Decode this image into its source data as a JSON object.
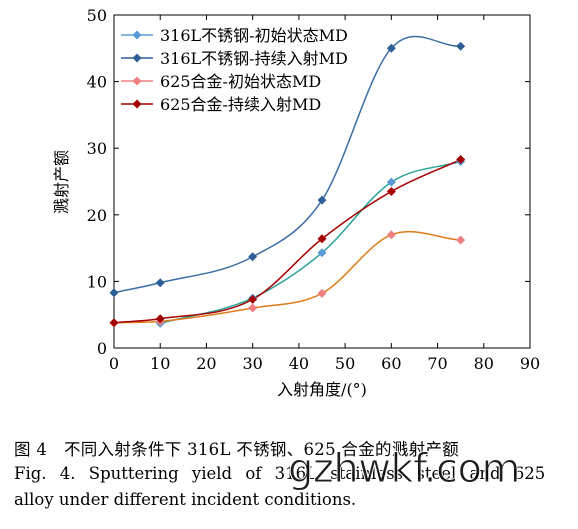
{
  "chart_data": {
    "type": "line",
    "xlabel": "入射角度/(°)",
    "ylabel": "溅射产额",
    "xlim": [
      0,
      90
    ],
    "ylim": [
      0,
      50
    ],
    "xticks": [
      0,
      10,
      20,
      30,
      40,
      50,
      60,
      70,
      80,
      90
    ],
    "yticks": [
      0,
      10,
      20,
      30,
      40,
      50
    ],
    "legend_position": "top-left",
    "grid": false,
    "series": [
      {
        "name": "316L不锈钢-初始状态MD",
        "marker_color": "#5b9bd5",
        "line_color": "#2aa39a",
        "x": [
          10,
          30,
          45,
          60,
          75
        ],
        "y": [
          3.7,
          7.5,
          14.3,
          24.9,
          28.0
        ]
      },
      {
        "name": "316L不锈钢-持续入射MD",
        "marker_color": "#2f5f98",
        "line_color": "#3b6ea5",
        "x": [
          0,
          10,
          30,
          45,
          60,
          75
        ],
        "y": [
          8.3,
          9.8,
          13.7,
          22.2,
          45.0,
          45.3
        ]
      },
      {
        "name": "625合金-初始状态MD",
        "marker_color": "#f08080",
        "line_color": "#e07b1a",
        "x": [
          0,
          10,
          30,
          45,
          60,
          75
        ],
        "y": [
          3.8,
          4.0,
          6.0,
          8.2,
          17.0,
          16.2
        ]
      },
      {
        "name": "625合金-持续入射MD",
        "marker_color": "#a40000",
        "line_color": "#a40000",
        "x": [
          0,
          10,
          30,
          45,
          60,
          75
        ],
        "y": [
          3.8,
          4.4,
          7.3,
          16.4,
          23.5,
          28.3
        ]
      }
    ]
  },
  "caption": {
    "zh": "图 4　不同入射条件下 316L 不锈钢、625 合金的溅射产额",
    "en_line1": "Fig. 4. Sputtering yield of 316L stainless steel and 625",
    "en_line2": "alloy under different incident conditions."
  },
  "watermark": "gzhwkf.com"
}
